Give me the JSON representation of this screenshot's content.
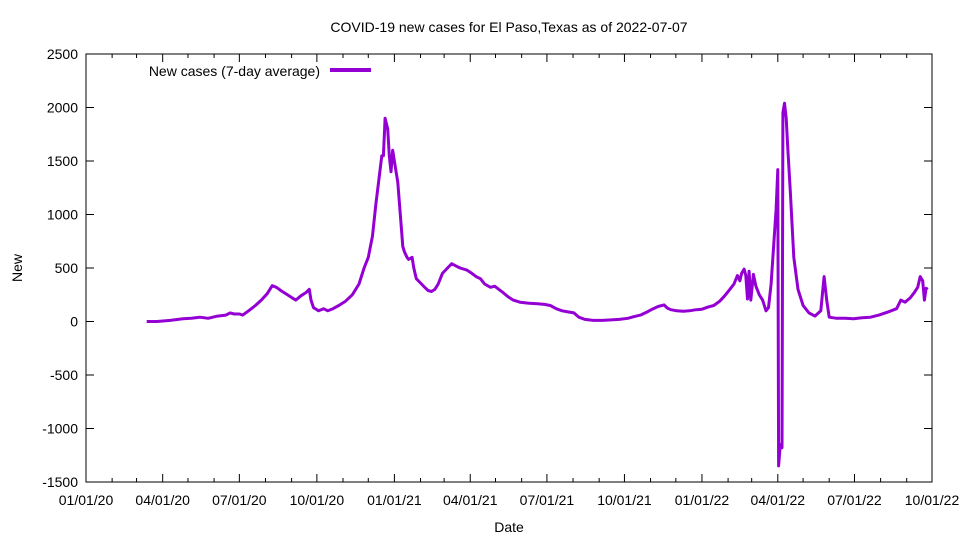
{
  "chart_data": {
    "type": "line",
    "title": "COVID-19 new cases for El Paso,Texas as of 2022-07-07",
    "xlabel": "Date",
    "ylabel": "New",
    "x_range": [
      "2020-01-01",
      "2022-10-01"
    ],
    "ylim": [
      -1500,
      2500
    ],
    "y_ticks": [
      -1500,
      -1000,
      -500,
      0,
      500,
      1000,
      1500,
      2000,
      2500
    ],
    "x_ticks": [
      "2020-01-01",
      "2020-04-01",
      "2020-07-01",
      "2020-10-01",
      "2021-01-01",
      "2021-04-01",
      "2021-07-01",
      "2021-10-01",
      "2022-01-01",
      "2022-04-01",
      "2022-07-01",
      "2022-10-01"
    ],
    "x_tick_labels": [
      "01/01/20",
      "04/01/20",
      "07/01/20",
      "10/01/20",
      "01/01/21",
      "04/01/21",
      "07/01/21",
      "10/01/21",
      "01/01/22",
      "04/01/22",
      "07/01/22",
      "10/01/22"
    ],
    "grid": false,
    "legend_position": "top-left",
    "series": [
      {
        "name": "New cases (7-day average)",
        "color": "#9400d3",
        "points": [
          [
            "2020-03-13",
            0
          ],
          [
            "2020-03-25",
            0
          ],
          [
            "2020-04-10",
            10
          ],
          [
            "2020-04-25",
            25
          ],
          [
            "2020-05-05",
            30
          ],
          [
            "2020-05-15",
            40
          ],
          [
            "2020-05-25",
            30
          ],
          [
            "2020-06-05",
            50
          ],
          [
            "2020-06-15",
            60
          ],
          [
            "2020-06-20",
            80
          ],
          [
            "2020-06-25",
            70
          ],
          [
            "2020-07-01",
            70
          ],
          [
            "2020-07-05",
            60
          ],
          [
            "2020-07-12",
            100
          ],
          [
            "2020-07-20",
            150
          ],
          [
            "2020-07-27",
            200
          ],
          [
            "2020-08-03",
            260
          ],
          [
            "2020-08-09",
            335
          ],
          [
            "2020-08-14",
            320
          ],
          [
            "2020-08-20",
            285
          ],
          [
            "2020-08-27",
            250
          ],
          [
            "2020-09-02",
            220
          ],
          [
            "2020-09-06",
            200
          ],
          [
            "2020-09-12",
            240
          ],
          [
            "2020-09-18",
            270
          ],
          [
            "2020-09-22",
            300
          ],
          [
            "2020-09-24",
            200
          ],
          [
            "2020-09-27",
            130
          ],
          [
            "2020-10-03",
            100
          ],
          [
            "2020-10-09",
            120
          ],
          [
            "2020-10-14",
            100
          ],
          [
            "2020-10-20",
            120
          ],
          [
            "2020-10-27",
            150
          ],
          [
            "2020-11-04",
            190
          ],
          [
            "2020-11-12",
            250
          ],
          [
            "2020-11-20",
            350
          ],
          [
            "2020-11-26",
            500
          ],
          [
            "2020-12-01",
            600
          ],
          [
            "2020-12-06",
            800
          ],
          [
            "2020-12-10",
            1100
          ],
          [
            "2020-12-14",
            1350
          ],
          [
            "2020-12-17",
            1550
          ],
          [
            "2020-12-19",
            1550
          ],
          [
            "2020-12-21",
            1900
          ],
          [
            "2020-12-24",
            1800
          ],
          [
            "2020-12-26",
            1550
          ],
          [
            "2020-12-28",
            1400
          ],
          [
            "2020-12-30",
            1600
          ],
          [
            "2021-01-02",
            1450
          ],
          [
            "2021-01-05",
            1300
          ],
          [
            "2021-01-08",
            1000
          ],
          [
            "2021-01-11",
            700
          ],
          [
            "2021-01-13",
            650
          ],
          [
            "2021-01-16",
            600
          ],
          [
            "2021-01-18",
            580
          ],
          [
            "2021-01-22",
            600
          ],
          [
            "2021-01-24",
            500
          ],
          [
            "2021-01-27",
            400
          ],
          [
            "2021-02-01",
            360
          ],
          [
            "2021-02-06",
            320
          ],
          [
            "2021-02-10",
            290
          ],
          [
            "2021-02-14",
            280
          ],
          [
            "2021-02-18",
            300
          ],
          [
            "2021-02-22",
            350
          ],
          [
            "2021-02-27",
            450
          ],
          [
            "2021-03-05",
            500
          ],
          [
            "2021-03-10",
            540
          ],
          [
            "2021-03-15",
            520
          ],
          [
            "2021-03-20",
            500
          ],
          [
            "2021-03-28",
            480
          ],
          [
            "2021-04-03",
            450
          ],
          [
            "2021-04-08",
            420
          ],
          [
            "2021-04-13",
            400
          ],
          [
            "2021-04-18",
            350
          ],
          [
            "2021-04-25",
            320
          ],
          [
            "2021-04-30",
            330
          ],
          [
            "2021-05-05",
            300
          ],
          [
            "2021-05-10",
            270
          ],
          [
            "2021-05-16",
            230
          ],
          [
            "2021-05-22",
            200
          ],
          [
            "2021-05-30",
            180
          ],
          [
            "2021-06-10",
            170
          ],
          [
            "2021-06-20",
            165
          ],
          [
            "2021-06-28",
            160
          ],
          [
            "2021-07-05",
            150
          ],
          [
            "2021-07-12",
            120
          ],
          [
            "2021-07-19",
            100
          ],
          [
            "2021-07-26",
            90
          ],
          [
            "2021-08-02",
            80
          ],
          [
            "2021-08-08",
            40
          ],
          [
            "2021-08-15",
            20
          ],
          [
            "2021-08-25",
            10
          ],
          [
            "2021-09-05",
            10
          ],
          [
            "2021-09-15",
            15
          ],
          [
            "2021-09-25",
            20
          ],
          [
            "2021-10-05",
            30
          ],
          [
            "2021-10-12",
            45
          ],
          [
            "2021-10-20",
            60
          ],
          [
            "2021-10-28",
            90
          ],
          [
            "2021-11-03",
            115
          ],
          [
            "2021-11-10",
            140
          ],
          [
            "2021-11-17",
            155
          ],
          [
            "2021-11-21",
            125
          ],
          [
            "2021-11-25",
            110
          ],
          [
            "2021-12-02",
            100
          ],
          [
            "2021-12-10",
            95
          ],
          [
            "2021-12-17",
            100
          ],
          [
            "2021-12-25",
            110
          ],
          [
            "2022-01-01",
            115
          ],
          [
            "2022-01-08",
            135
          ],
          [
            "2022-01-15",
            150
          ],
          [
            "2022-01-22",
            190
          ],
          [
            "2022-01-28",
            240
          ],
          [
            "2022-02-03",
            300
          ],
          [
            "2022-02-08",
            350
          ],
          [
            "2022-02-12",
            430
          ],
          [
            "2022-02-15",
            380
          ],
          [
            "2022-02-17",
            450
          ],
          [
            "2022-02-20",
            490
          ],
          [
            "2022-02-22",
            430
          ],
          [
            "2022-02-24",
            210
          ],
          [
            "2022-02-26",
            470
          ],
          [
            "2022-02-28",
            200
          ],
          [
            "2022-03-03",
            440
          ],
          [
            "2022-03-06",
            330
          ],
          [
            "2022-03-10",
            250
          ],
          [
            "2022-03-14",
            200
          ],
          [
            "2022-03-18",
            100
          ],
          [
            "2022-03-21",
            130
          ],
          [
            "2022-03-24",
            350
          ],
          [
            "2022-03-27",
            700
          ],
          [
            "2022-03-30",
            1050
          ],
          [
            "2022-04-01",
            1420
          ],
          [
            "2022-04-02",
            -1350
          ],
          [
            "2022-04-04",
            -1150
          ],
          [
            "2022-04-06",
            -1180
          ],
          [
            "2022-04-07",
            1950
          ],
          [
            "2022-04-09",
            2040
          ],
          [
            "2022-04-11",
            1900
          ],
          [
            "2022-04-13",
            1600
          ],
          [
            "2022-04-16",
            1200
          ],
          [
            "2022-04-20",
            600
          ],
          [
            "2022-04-25",
            300
          ],
          [
            "2022-05-01",
            150
          ],
          [
            "2022-05-08",
            80
          ],
          [
            "2022-05-15",
            50
          ],
          [
            "2022-05-22",
            100
          ],
          [
            "2022-05-26",
            420
          ],
          [
            "2022-05-29",
            200
          ],
          [
            "2022-06-01",
            40
          ],
          [
            "2022-06-10",
            30
          ],
          [
            "2022-06-20",
            30
          ],
          [
            "2022-06-30",
            25
          ],
          [
            "2022-07-10",
            35
          ],
          [
            "2022-07-20",
            40
          ],
          [
            "2022-07-30",
            60
          ],
          [
            "2022-08-10",
            90
          ],
          [
            "2022-08-20",
            120
          ],
          [
            "2022-08-25",
            200
          ],
          [
            "2022-08-30",
            180
          ],
          [
            "2022-09-05",
            220
          ],
          [
            "2022-09-10",
            270
          ],
          [
            "2022-09-14",
            320
          ],
          [
            "2022-09-17",
            420
          ],
          [
            "2022-09-20",
            380
          ],
          [
            "2022-09-22",
            200
          ],
          [
            "2022-09-24",
            310
          ],
          [
            "2022-09-26",
            300
          ]
        ]
      }
    ]
  }
}
